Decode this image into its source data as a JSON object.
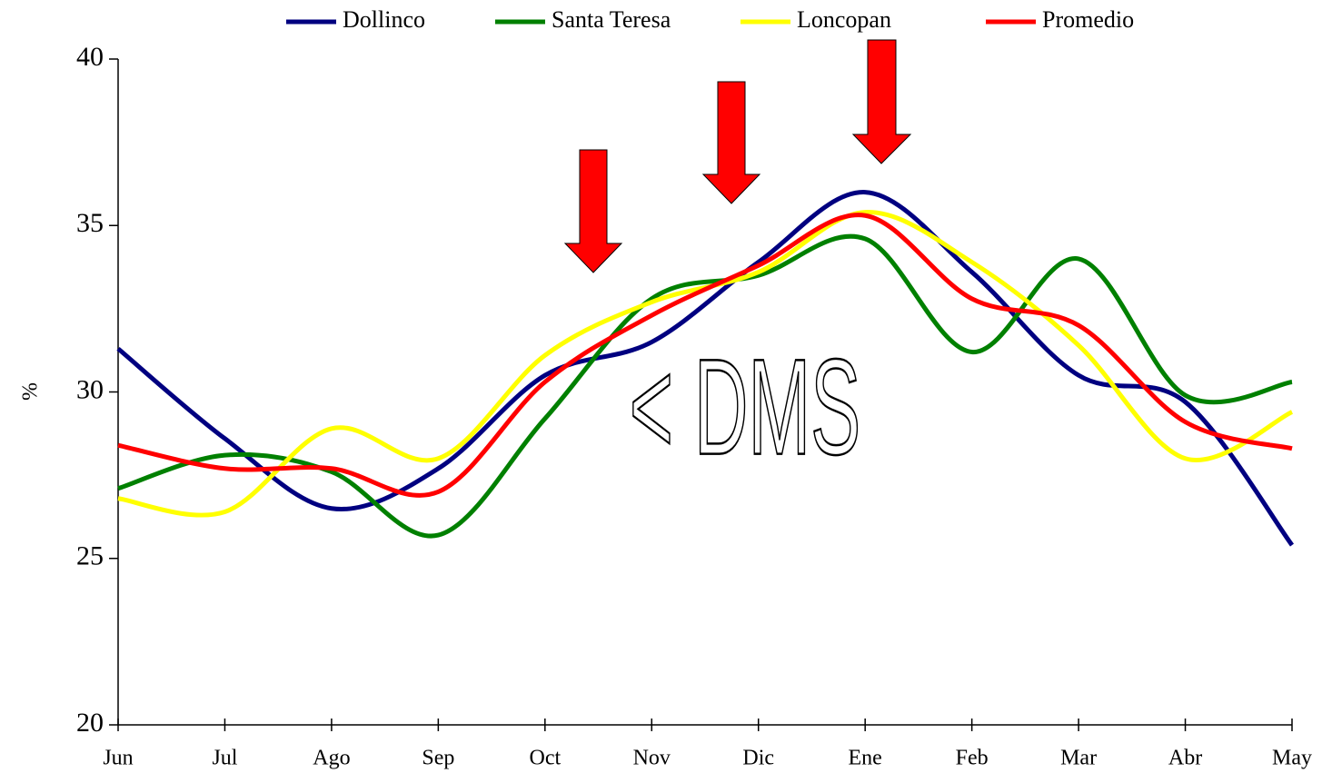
{
  "chart_data": {
    "type": "line",
    "y_label": "%",
    "categories": [
      "Jun",
      "Jul",
      "Ago",
      "Sep",
      "Oct",
      "Nov",
      "Dic",
      "Ene",
      "Feb",
      "Mar",
      "Abr",
      "May"
    ],
    "series": [
      {
        "name": "Dollinco",
        "color": "#000080",
        "values": [
          31.3,
          28.6,
          26.5,
          27.7,
          30.5,
          31.5,
          33.9,
          36.0,
          33.6,
          30.5,
          29.7,
          25.4
        ]
      },
      {
        "name": "Santa Teresa",
        "color": "#008000",
        "values": [
          27.1,
          28.1,
          27.6,
          25.7,
          29.2,
          32.8,
          33.5,
          34.6,
          31.2,
          34.0,
          29.9,
          30.3
        ]
      },
      {
        "name": "Loncopan",
        "color": "#ffff00",
        "values": [
          26.8,
          26.4,
          28.9,
          28.0,
          31.1,
          32.7,
          33.6,
          35.4,
          33.9,
          31.4,
          28.0,
          29.4
        ]
      },
      {
        "name": "Promedio",
        "color": "#ff0000",
        "values": [
          28.4,
          27.7,
          27.7,
          27.0,
          30.3,
          32.3,
          33.8,
          35.3,
          32.8,
          32.0,
          29.1,
          28.3
        ]
      }
    ],
    "ylim": [
      20,
      40
    ],
    "yticks": [
      20,
      25,
      30,
      35,
      40
    ],
    "grid": false,
    "legend": "top",
    "annotation": "< DMS"
  }
}
